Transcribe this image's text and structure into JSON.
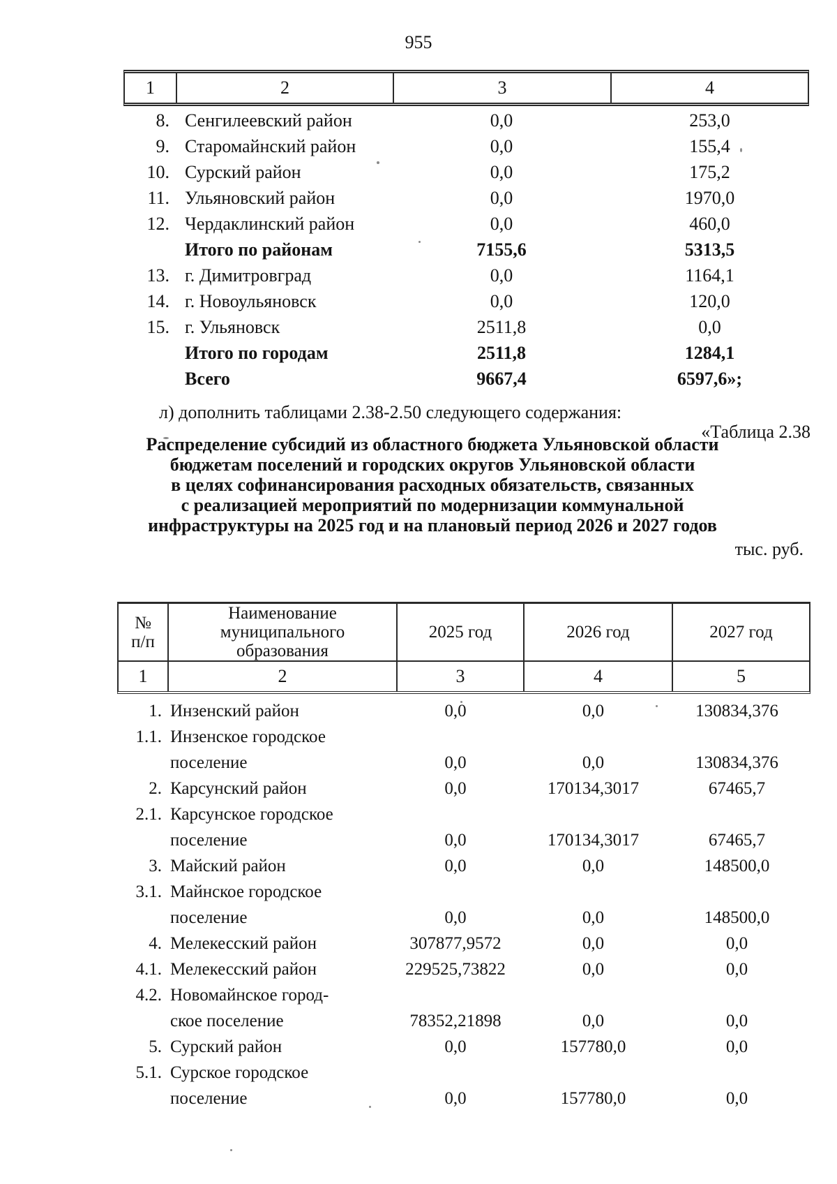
{
  "page": {
    "number": "955"
  },
  "table1": {
    "column_numbers": [
      "1",
      "2",
      "3",
      "4"
    ],
    "rows": [
      {
        "num": "8.",
        "name": "Сенгилеевский район",
        "col3": "0,0",
        "col4": "253,0",
        "bold": false
      },
      {
        "num": "9.",
        "name": "Старомайнский район",
        "col3": "0,0",
        "col4": "155,4",
        "bold": false
      },
      {
        "num": "10.",
        "name": "Сурский район",
        "col3": "0,0",
        "col4": "175,2",
        "bold": false
      },
      {
        "num": "11.",
        "name": "Ульяновский район",
        "col3": "0,0",
        "col4": "1970,0",
        "bold": false
      },
      {
        "num": "12.",
        "name": "Чердаклинский район",
        "col3": "0,0",
        "col4": "460,0",
        "bold": false
      },
      {
        "num": "",
        "name": "Итого по районам",
        "col3": "7155,6",
        "col4": "5313,5",
        "bold": true
      },
      {
        "num": "13.",
        "name": "г. Димитровград",
        "col3": "0,0",
        "col4": "1164,1",
        "bold": false
      },
      {
        "num": "14.",
        "name": "г. Новоульяновск",
        "col3": "0,0",
        "col4": "120,0",
        "bold": false
      },
      {
        "num": "15.",
        "name": "г. Ульяновск",
        "col3": "2511,8",
        "col4": "0,0",
        "bold": false
      },
      {
        "num": "",
        "name": "Итого по городам",
        "col3": "2511,8",
        "col4": "1284,1",
        "bold": true
      },
      {
        "num": "",
        "name": "Всего",
        "col3": "9667,4",
        "col4": "6597,6»;",
        "bold": true
      }
    ]
  },
  "amendment": {
    "item_text": "л) дополнить таблицами 2.38-2.50 следующего содержания:",
    "table_label": "«Таблица 2.38"
  },
  "table2": {
    "title_lines": [
      "Распределение субсидий из областного бюджета Ульяновской области",
      "бюджетам поселений и городских округов Ульяновской области",
      "в целях софинансирования расходных обязательств, связанных",
      "с реализацией мероприятий по модернизации коммунальной",
      "инфраструктуры на 2025 год и на плановый период 2026 и 2027 годов"
    ],
    "units_label": "тыс. руб.",
    "headers": {
      "num": "№\nп/п",
      "name": "Наименование\nмуниципального\nобразования",
      "y2025": "2025 год",
      "y2026": "2026 год",
      "y2027": "2027 год"
    },
    "column_numbers": [
      "1",
      "2",
      "3",
      "4",
      "5"
    ],
    "rows": [
      {
        "num": "1.",
        "name_lines": [
          "Инзенский район"
        ],
        "y2025": "0,0",
        "y2026": "0,0",
        "y2027": "130834,376"
      },
      {
        "num": "1.1.",
        "name_lines": [
          "Инзенское городское",
          "поселение"
        ],
        "y2025": "0,0",
        "y2026": "0,0",
        "y2027": "130834,376"
      },
      {
        "num": "2.",
        "name_lines": [
          "Карсунский район"
        ],
        "y2025": "0,0",
        "y2026": "170134,3017",
        "y2027": "67465,7"
      },
      {
        "num": "2.1.",
        "name_lines": [
          "Карсунское городское",
          "поселение"
        ],
        "y2025": "0,0",
        "y2026": "170134,3017",
        "y2027": "67465,7"
      },
      {
        "num": "3.",
        "name_lines": [
          "Майский район"
        ],
        "y2025": "0,0",
        "y2026": "0,0",
        "y2027": "148500,0"
      },
      {
        "num": "3.1.",
        "name_lines": [
          "Майнское городское",
          "поселение"
        ],
        "y2025": "0,0",
        "y2026": "0,0",
        "y2027": "148500,0"
      },
      {
        "num": "4.",
        "name_lines": [
          "Мелекесский район"
        ],
        "y2025": "307877,9572",
        "y2026": "0,0",
        "y2027": "0,0"
      },
      {
        "num": "4.1.",
        "name_lines": [
          "Мелекесский район"
        ],
        "y2025": "229525,73822",
        "y2026": "0,0",
        "y2027": "0,0"
      },
      {
        "num": "4.2.",
        "name_lines": [
          "Новомайнское город-",
          "ское поселение"
        ],
        "y2025": "78352,21898",
        "y2026": "0,0",
        "y2027": "0,0"
      },
      {
        "num": "5.",
        "name_lines": [
          "Сурский район"
        ],
        "y2025": "0,0",
        "y2026": "157780,0",
        "y2027": "0,0"
      },
      {
        "num": "5.1.",
        "name_lines": [
          "Сурское городское",
          "поселение"
        ],
        "y2025": "0,0",
        "y2026": "157780,0",
        "y2027": "0,0"
      }
    ]
  }
}
